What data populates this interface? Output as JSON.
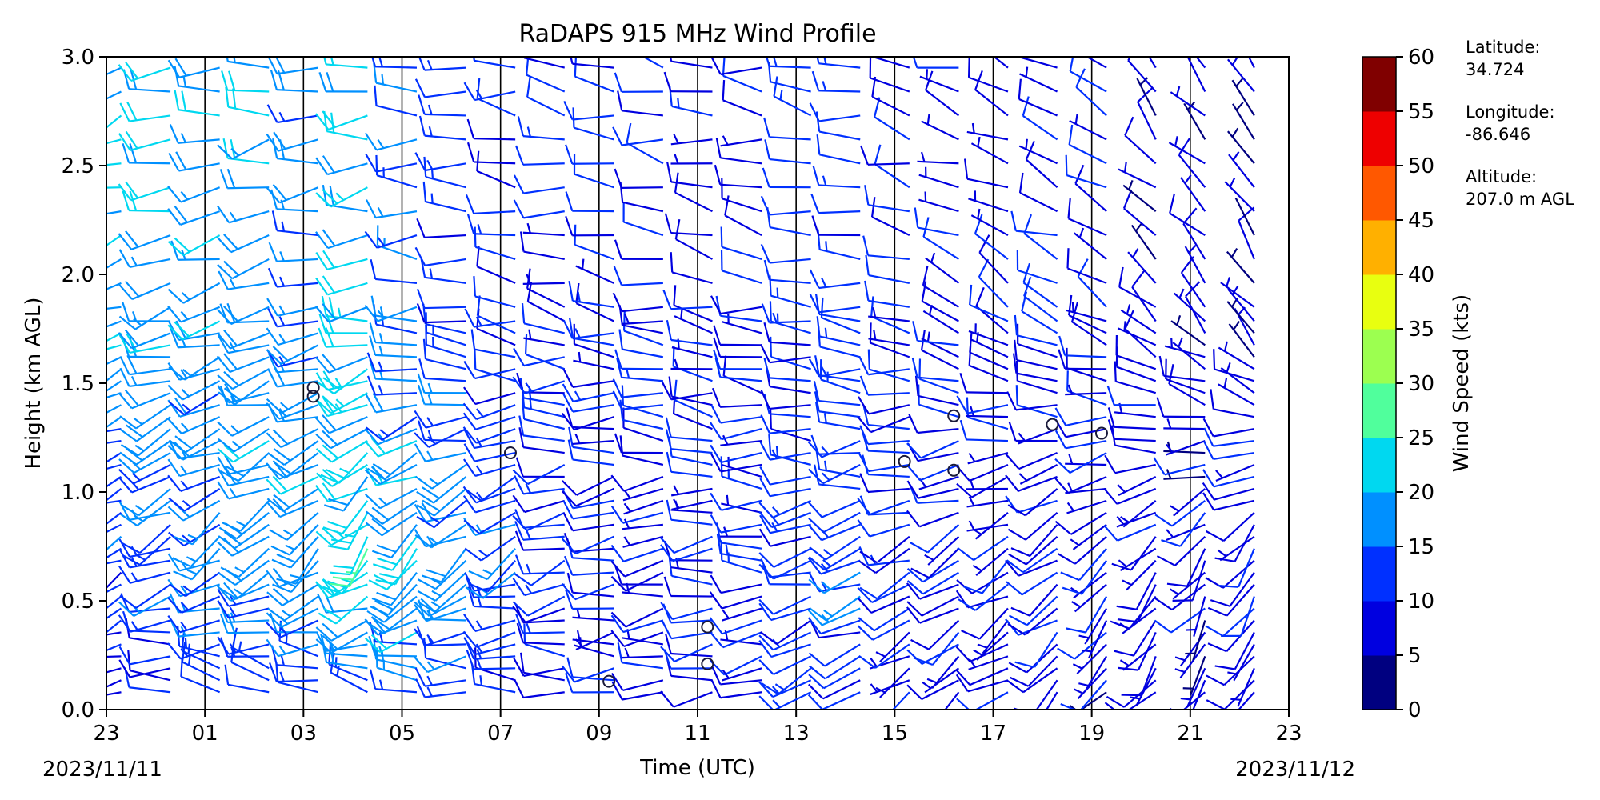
{
  "chart_data": {
    "type": "wind_barb_profile",
    "title": "RaDAPS 915 MHz Wind Profile",
    "xlabel": "Time (UTC)",
    "ylabel": "Height (km AGL)",
    "x_tick_labels": [
      "23",
      "01",
      "03",
      "05",
      "07",
      "09",
      "11",
      "13",
      "15",
      "17",
      "19",
      "21",
      "23"
    ],
    "x_range_hours": [
      0,
      24
    ],
    "x_start_date": "2023/11/11",
    "x_end_date": "2023/11/12",
    "y_ticks": [
      "0.0",
      "0.5",
      "1.0",
      "1.5",
      "2.0",
      "2.5",
      "3.0"
    ],
    "ylim": [
      0,
      3.0
    ],
    "colorbar": {
      "label": "Wind Speed (kts)",
      "ticks": [
        "0",
        "5",
        "10",
        "15",
        "20",
        "25",
        "30",
        "35",
        "40",
        "45",
        "50",
        "55",
        "60"
      ],
      "range": [
        0,
        60
      ],
      "colors": [
        "#000080",
        "#0000e0",
        "#0030ff",
        "#0090ff",
        "#00d8f0",
        "#50ff9c",
        "#9cff50",
        "#e8ff10",
        "#ffb000",
        "#ff5800",
        "#ee0000",
        "#800000"
      ]
    },
    "station": {
      "latitude_label": "Latitude:",
      "latitude": "34.724",
      "longitude_label": "Longitude:",
      "longitude": "-86.646",
      "altitude_label": "Altitude:",
      "altitude": "207.0 m AGL"
    },
    "grid": "vertical lines every 2 hours",
    "calm_markers": [
      {
        "time_h": 4.2,
        "height_km": 1.48
      },
      {
        "time_h": 4.2,
        "height_km": 1.44
      },
      {
        "time_h": 8.2,
        "height_km": 1.18
      },
      {
        "time_h": 10.2,
        "height_km": 0.13
      },
      {
        "time_h": 12.2,
        "height_km": 0.38
      },
      {
        "time_h": 12.2,
        "height_km": 0.21
      },
      {
        "time_h": 16.2,
        "height_km": 1.14
      },
      {
        "time_h": 17.2,
        "height_km": 1.35
      },
      {
        "time_h": 17.2,
        "height_km": 1.1
      },
      {
        "time_h": 19.2,
        "height_km": 1.31
      },
      {
        "time_h": 20.2,
        "height_km": 1.27
      }
    ],
    "barb_columns_approx": {
      "times_h": [
        0.3,
        1.3,
        2.3,
        3.3,
        4.3,
        5.3,
        6.3,
        7.3,
        8.3,
        9.3,
        10.3,
        11.3,
        12.3,
        13.3,
        14.3,
        15.3,
        16.3,
        17.3,
        18.3,
        19.3,
        20.3,
        21.3,
        22.3,
        23.3
      ],
      "upper_speed_kts": [
        20,
        20,
        18,
        18,
        16,
        20,
        14,
        12,
        11,
        10,
        10,
        10,
        10,
        10,
        12,
        12,
        10,
        9,
        8,
        10,
        9,
        7,
        7,
        5
      ],
      "upper_direction_deg": [
        250,
        255,
        260,
        262,
        265,
        262,
        270,
        275,
        278,
        280,
        280,
        282,
        282,
        280,
        280,
        282,
        285,
        290,
        300,
        295,
        305,
        315,
        320,
        325
      ],
      "mid_speed_kts": [
        12,
        14,
        16,
        18,
        20,
        24,
        22,
        18,
        14,
        12,
        10,
        9,
        9,
        10,
        12,
        14,
        10,
        9,
        9,
        10,
        9,
        8,
        8,
        10
      ],
      "mid_direction_deg": [
        240,
        245,
        235,
        230,
        225,
        220,
        225,
        235,
        240,
        250,
        255,
        260,
        265,
        270,
        255,
        250,
        245,
        240,
        235,
        230,
        225,
        220,
        215,
        210
      ],
      "low_speed_kts": [
        9,
        10,
        11,
        12,
        12,
        14,
        13,
        12,
        11,
        9,
        8,
        7,
        8,
        9,
        10,
        10,
        8,
        8,
        8,
        8,
        7,
        7,
        7,
        8
      ],
      "low_direction_deg": [
        260,
        270,
        290,
        300,
        300,
        295,
        290,
        285,
        285,
        280,
        275,
        270,
        265,
        255,
        250,
        245,
        240,
        235,
        235,
        230,
        225,
        220,
        215,
        210
      ]
    }
  }
}
